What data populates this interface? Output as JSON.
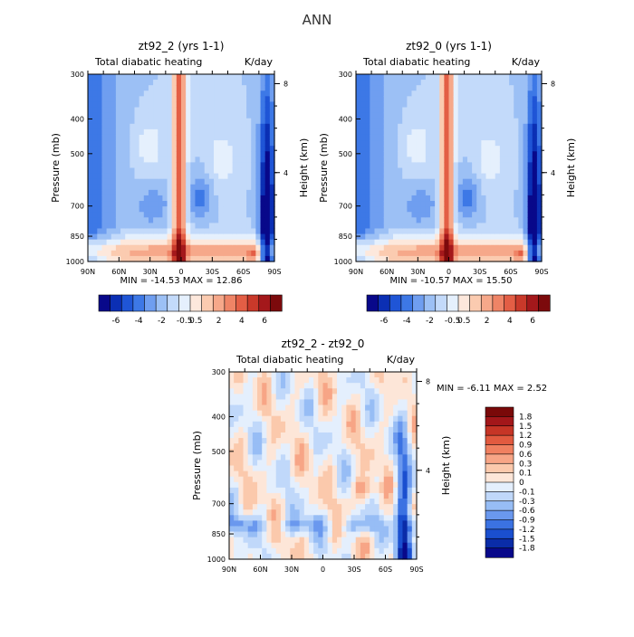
{
  "figure": {
    "title": "ANN"
  },
  "colors": {
    "abs_scale": [
      "#08088a",
      "#0b2fb4",
      "#1f55d6",
      "#3d78e6",
      "#6f9ef0",
      "#9cc0f5",
      "#c3dafa",
      "#e5f0fd",
      "#fde8dc",
      "#fbcbb0",
      "#f6a88a",
      "#ef8466",
      "#e35e45",
      "#c9392a",
      "#a4181b",
      "#7c0a0c"
    ],
    "diff_scale": [
      "#08088a",
      "#0a2ca8",
      "#1a4fcf",
      "#3b72e2",
      "#6a98ee",
      "#97bdf5",
      "#c0d8fa",
      "#e4effd",
      "#fde6d8",
      "#fbc9ac",
      "#f7a586",
      "#f08060",
      "#e25a3f",
      "#c63526",
      "#a3171a",
      "#7a0909"
    ]
  },
  "chart_data": [
    {
      "id": "panel-zt92_2",
      "type": "heatmap",
      "title": "zt92_2 (yrs 1-1)",
      "subtitle_left": "Total diabatic heating",
      "subtitle_right": "K/day",
      "ylabel": "Pressure (mb)",
      "ylabel_right": "Height (km)",
      "x_ticks": [
        "90N",
        "60N",
        "30N",
        "0",
        "30S",
        "60S",
        "90S"
      ],
      "x_lim": [
        90,
        -90
      ],
      "y_ticks": [
        "300",
        "400",
        "500",
        "700",
        "850",
        "1000"
      ],
      "y_tick_values": [
        300,
        400,
        500,
        700,
        850,
        1000
      ],
      "y_lim": [
        300,
        1000
      ],
      "y_scale": "log",
      "y_right_ticks": [
        "8",
        "4"
      ],
      "y_right_tick_values": [
        8,
        4
      ],
      "stats_min_label": "MIN =",
      "stats_min": "-14.53",
      "stats_max_label": "MAX =",
      "stats_max": "12.86",
      "colorbar_orientation": "horizontal",
      "colorbar_labels": [
        "-6",
        "-4",
        "-2",
        "-0.5",
        "0.5",
        "2",
        "4",
        "6"
      ]
    },
    {
      "id": "panel-zt92_0",
      "type": "heatmap",
      "title": "zt92_0 (yrs 1-1)",
      "subtitle_left": "Total diabatic heating",
      "subtitle_right": "K/day",
      "ylabel": "Pressure (mb)",
      "ylabel_right": "Height (km)",
      "x_ticks": [
        "90N",
        "60N",
        "30N",
        "0",
        "30S",
        "60S",
        "90S"
      ],
      "x_lim": [
        90,
        -90
      ],
      "y_ticks": [
        "300",
        "400",
        "500",
        "700",
        "850",
        "1000"
      ],
      "y_tick_values": [
        300,
        400,
        500,
        700,
        850,
        1000
      ],
      "y_lim": [
        300,
        1000
      ],
      "y_scale": "log",
      "y_right_ticks": [
        "8",
        "4"
      ],
      "y_right_tick_values": [
        8,
        4
      ],
      "stats_min_label": "MIN =",
      "stats_min": "-10.57",
      "stats_max_label": "MAX =",
      "stats_max": "15.50",
      "colorbar_orientation": "horizontal",
      "colorbar_labels": [
        "-6",
        "-4",
        "-2",
        "-0.5",
        "0.5",
        "2",
        "4",
        "6"
      ]
    },
    {
      "id": "panel-diff",
      "type": "heatmap",
      "title": "zt92_2 - zt92_0",
      "subtitle_left": "Total diabatic heating",
      "subtitle_right": "K/day",
      "ylabel": "Pressure (mb)",
      "ylabel_right": "Height (km)",
      "x_ticks": [
        "90N",
        "60N",
        "30N",
        "0",
        "30S",
        "60S",
        "90S"
      ],
      "x_lim": [
        90,
        -90
      ],
      "y_ticks": [
        "300",
        "400",
        "500",
        "700",
        "850",
        "1000"
      ],
      "y_tick_values": [
        300,
        400,
        500,
        700,
        850,
        1000
      ],
      "y_lim": [
        300,
        1000
      ],
      "y_scale": "log",
      "y_right_ticks": [
        "8",
        "4"
      ],
      "y_right_tick_values": [
        8,
        4
      ],
      "stats_min_label": "MIN =",
      "stats_min": "-6.11",
      "stats_max_label": "MAX =",
      "stats_max": "2.52",
      "colorbar_orientation": "vertical",
      "colorbar_labels": [
        "1.8",
        "1.5",
        "1.2",
        "0.9",
        "0.6",
        "0.3",
        "0.1",
        "0",
        "-0.1",
        "-0.3",
        "-0.6",
        "-0.9",
        "-1.2",
        "-1.5",
        "-1.8"
      ]
    }
  ]
}
